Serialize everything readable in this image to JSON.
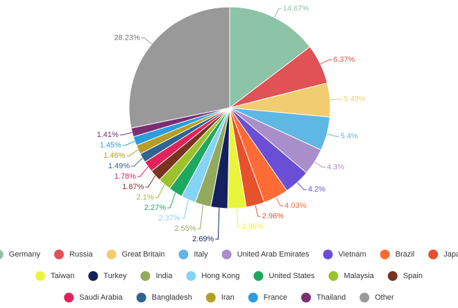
{
  "chart_data": {
    "type": "pie",
    "categories": [
      "Germany",
      "Russia",
      "Great Britain",
      "Italy",
      "United Arab Emirates",
      "Vietnam",
      "Brazil",
      "Japan",
      "Taiwan",
      "Turkey",
      "India",
      "Hong Kong",
      "United States",
      "Malaysia",
      "Spain",
      "Saudi Arabia",
      "Bangladesh",
      "Iran",
      "France",
      "Thailand",
      "Other"
    ],
    "values": [
      14.67,
      6.37,
      5.43,
      5.4,
      4.3,
      4.2,
      4.03,
      2.96,
      2.96,
      2.69,
      2.55,
      2.37,
      2.27,
      2.1,
      1.87,
      1.78,
      1.49,
      1.46,
      1.45,
      1.41,
      28.23
    ],
    "value_labels": [
      "14.67%",
      "6.37%",
      "5.43%",
      "5.4%",
      "4.3%",
      "4.2%",
      "4.03%",
      "2.96%",
      "2.96%",
      "2.69%",
      "2.55%",
      "2.37%",
      "2.27%",
      "2.1%",
      "1.87%",
      "1.78%",
      "1.49%",
      "1.46%",
      "1.45%",
      "1.41%",
      "28.23%"
    ],
    "colors": [
      "#8dc3a7",
      "#e05255",
      "#f2cd6f",
      "#5fb7e4",
      "#a98fc9",
      "#6a4fd6",
      "#ff6b35",
      "#e6522c",
      "#e9f53a",
      "#15205e",
      "#93a95e",
      "#85d3f7",
      "#1ea85f",
      "#9bc22c",
      "#7a3322",
      "#e3225c",
      "#2e6591",
      "#b59d27",
      "#2b9ddb",
      "#7b2e73",
      "#999999"
    ],
    "legend": "bottom"
  }
}
